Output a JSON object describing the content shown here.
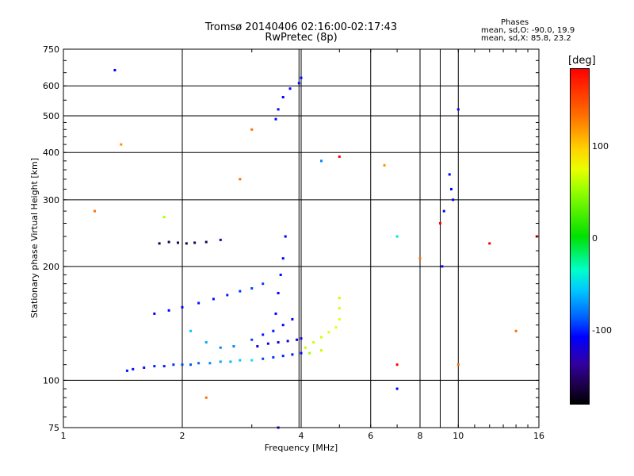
{
  "header": {
    "title_line1": "Tromsø 20140406 02:16:00-02:17:43",
    "title_line2": "RwPretec (8p)",
    "stats_title": "Phases",
    "stats_o": "mean, sd,O: -90.0, 19.9",
    "stats_x": "mean, sd,X:  85.8, 23.2"
  },
  "colorbar": {
    "unit": "[deg]",
    "tick_labels": [
      "100",
      "0",
      "-100"
    ],
    "colors": [
      "#ff0000",
      "#ff7000",
      "#ffd400",
      "#9bff00",
      "#00e000",
      "#00ffc8",
      "#00c8ff",
      "#0064ff",
      "#0000ff",
      "#3200a0",
      "#000000"
    ]
  },
  "chart_data": {
    "type": "scatter",
    "title": "Tromsø 20140406 02:16:00-02:17:43",
    "subtitle": "RwPretec (8p)",
    "xlabel": "Frequency [MHz]",
    "ylabel": "Stationary phase Virtual Height [km]",
    "xscale": "log",
    "yscale": "log",
    "xlim": [
      1,
      16
    ],
    "ylim": [
      75,
      750
    ],
    "xticks": [
      1,
      2,
      4,
      6,
      8,
      10,
      16
    ],
    "xtick_labels": [
      "1",
      "2",
      "4",
      "6",
      "8",
      "10",
      "16"
    ],
    "yticks": [
      75,
      100,
      200,
      300,
      400,
      500,
      600,
      750
    ],
    "ytick_labels": [
      "75",
      "100",
      "200",
      "300",
      "400",
      "500",
      "600",
      "750"
    ],
    "grid": true,
    "color_scale": {
      "unit": "deg",
      "range": [
        -150,
        150
      ],
      "ticks": [
        100,
        0,
        -100
      ]
    },
    "series": [
      {
        "points": [
          [
            1.45,
            106
          ],
          [
            1.5,
            107
          ],
          [
            1.6,
            108
          ],
          [
            1.7,
            109
          ],
          [
            1.8,
            109
          ],
          [
            1.9,
            110
          ],
          [
            2.0,
            110
          ],
          [
            2.1,
            110
          ],
          [
            2.2,
            111
          ],
          [
            2.35,
            111
          ],
          [
            2.5,
            112
          ],
          [
            2.65,
            112
          ],
          [
            2.8,
            113
          ],
          [
            3.0,
            113
          ],
          [
            3.2,
            114
          ],
          [
            3.4,
            115
          ],
          [
            3.6,
            116
          ],
          [
            3.8,
            117
          ],
          [
            4.0,
            118
          ],
          [
            4.2,
            118
          ],
          [
            4.5,
            120
          ]
        ],
        "color_deg": [
          -95,
          -95,
          -95,
          -90,
          -90,
          -85,
          -80,
          -75,
          -70,
          -60,
          -50,
          -45,
          -40,
          -30,
          -80,
          -85,
          -90,
          -95,
          -100,
          40,
          60
        ]
      },
      {
        "points": [
          [
            1.7,
            150
          ],
          [
            1.85,
            153
          ],
          [
            2.0,
            156
          ],
          [
            2.2,
            160
          ],
          [
            2.4,
            164
          ],
          [
            2.6,
            168
          ],
          [
            2.8,
            172
          ],
          [
            3.0,
            175
          ],
          [
            3.2,
            180
          ]
        ],
        "color_deg": [
          -100,
          -100,
          -100,
          -95,
          -95,
          -90,
          -85,
          -80,
          -80
        ]
      },
      {
        "points": [
          [
            2.1,
            135
          ],
          [
            2.3,
            126
          ],
          [
            2.5,
            122
          ],
          [
            2.7,
            123
          ],
          [
            3.0,
            128
          ],
          [
            3.2,
            132
          ],
          [
            3.4,
            135
          ],
          [
            3.6,
            140
          ],
          [
            3.8,
            145
          ]
        ],
        "color_deg": [
          -40,
          -50,
          -60,
          -60,
          -80,
          -90,
          -95,
          -100,
          -100
        ]
      },
      {
        "points": [
          [
            3.1,
            123
          ],
          [
            3.3,
            125
          ],
          [
            3.5,
            126
          ],
          [
            3.7,
            127
          ],
          [
            3.9,
            128
          ],
          [
            4.0,
            129
          ]
        ],
        "color_deg": [
          -110,
          -110,
          -110,
          -110,
          -110,
          -110
        ]
      },
      {
        "points": [
          [
            4.1,
            122
          ],
          [
            4.3,
            126
          ],
          [
            4.5,
            130
          ],
          [
            4.7,
            134
          ],
          [
            4.9,
            138
          ],
          [
            5.0,
            145
          ],
          [
            5.0,
            155
          ],
          [
            5.0,
            165
          ]
        ],
        "color_deg": [
          60,
          65,
          70,
          75,
          80,
          80,
          70,
          60
        ]
      },
      {
        "points": [
          [
            1.75,
            230
          ],
          [
            1.85,
            232
          ],
          [
            1.95,
            231
          ],
          [
            2.05,
            230
          ],
          [
            2.15,
            231
          ],
          [
            2.3,
            232
          ],
          [
            2.5,
            235
          ]
        ],
        "color_deg": [
          -140,
          -140,
          -140,
          -140,
          -140,
          -140,
          -120
        ]
      },
      {
        "points": [
          [
            3.45,
            150
          ],
          [
            3.5,
            170
          ],
          [
            3.55,
            190
          ],
          [
            3.6,
            210
          ],
          [
            3.65,
            240
          ]
        ],
        "color_deg": [
          -100,
          -100,
          -100,
          -100,
          -100
        ]
      },
      {
        "points": [
          [
            3.45,
            490
          ],
          [
            3.5,
            520
          ],
          [
            3.6,
            560
          ],
          [
            3.75,
            590
          ],
          [
            3.95,
            610
          ],
          [
            4.0,
            630
          ]
        ],
        "color_deg": [
          -100,
          -100,
          -100,
          -100,
          -100,
          -100
        ]
      },
      {
        "points": [
          [
            9.5,
            350
          ],
          [
            9.6,
            320
          ],
          [
            9.7,
            300
          ],
          [
            9.2,
            280
          ],
          [
            9.1,
            200
          ],
          [
            10.0,
            520
          ]
        ],
        "color_deg": [
          -100,
          -100,
          -100,
          -100,
          -100,
          -100
        ]
      },
      {
        "points": [
          [
            1.35,
            660
          ],
          [
            1.4,
            420
          ],
          [
            1.2,
            280
          ],
          [
            1.8,
            270
          ],
          [
            2.8,
            340
          ],
          [
            3.0,
            460
          ],
          [
            4.5,
            380
          ],
          [
            5.0,
            390
          ],
          [
            6.5,
            370
          ],
          [
            7.0,
            240
          ],
          [
            8.0,
            210
          ],
          [
            9.0,
            260
          ],
          [
            12.0,
            230
          ],
          [
            15.8,
            240
          ],
          [
            14.0,
            135
          ],
          [
            10.0,
            110
          ],
          [
            7.0,
            110
          ],
          [
            7.0,
            95
          ],
          [
            2.3,
            90
          ],
          [
            3.5,
            75
          ]
        ],
        "color_deg": [
          -100,
          120,
          130,
          50,
          130,
          130,
          -60,
          150,
          120,
          -30,
          130,
          150,
          150,
          150,
          130,
          130,
          150,
          -100,
          130,
          -100
        ]
      }
    ]
  }
}
